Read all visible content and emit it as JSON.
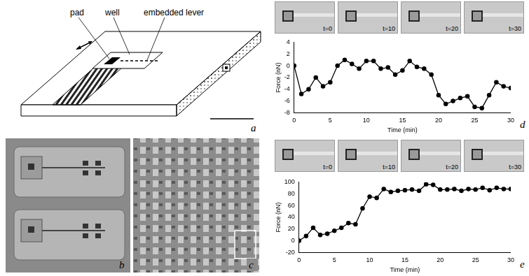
{
  "figure": {
    "diagram": {
      "panel": "a",
      "labels": [
        "pad",
        "well",
        "embedded lever"
      ]
    },
    "micrographs": [
      {
        "panel": "b"
      },
      {
        "panel": "c"
      }
    ],
    "frames": [
      {
        "panel": "d",
        "times": [
          "t=0",
          "t=10",
          "t=20",
          "t=30"
        ]
      },
      {
        "panel": "e",
        "times": [
          "t=0",
          "t=10",
          "t=20",
          "t=30"
        ]
      }
    ]
  },
  "chart_data": [
    {
      "type": "line",
      "panel": "d",
      "x_label": "Time (min)",
      "y_label": "Force (nN)",
      "x": [
        0,
        1,
        2,
        3,
        4,
        5,
        6,
        7,
        8,
        9,
        10,
        11,
        12,
        13,
        14,
        15,
        16,
        17,
        18,
        19,
        20,
        21,
        22,
        23,
        24,
        25,
        26,
        27,
        28,
        29,
        30
      ],
      "values": [
        0,
        -4.8,
        -4,
        -2,
        -3.5,
        -2.8,
        0,
        1,
        0.3,
        -0.5,
        0.8,
        0.8,
        -0.5,
        -0.3,
        -1.5,
        -0.8,
        0.8,
        -0.2,
        -0.5,
        -1.5,
        -5,
        -6.5,
        -6,
        -5.5,
        -5.2,
        -7,
        -7.2,
        -5,
        -2.8,
        -3.5,
        -3.8
      ],
      "color": "#000000",
      "marker": "circle",
      "line_style": "solid",
      "xlim": [
        0,
        30
      ],
      "xticks": [
        0,
        5,
        10,
        15,
        20,
        25,
        30
      ],
      "ylim": [
        -8,
        4
      ],
      "yticks": [
        -8,
        -6,
        -4,
        -2,
        0,
        2,
        4
      ],
      "grid": false
    },
    {
      "type": "line",
      "panel": "e",
      "x_label": "Time (min)",
      "y_label": "Force (nN)",
      "x": [
        0,
        1,
        2,
        3,
        4,
        5,
        6,
        7,
        8,
        9,
        10,
        11,
        12,
        13,
        14,
        15,
        16,
        17,
        18,
        19,
        20,
        21,
        22,
        23,
        24,
        25,
        26,
        27,
        28,
        29,
        30
      ],
      "values": [
        0,
        8,
        22,
        10,
        12,
        17,
        22,
        30,
        28,
        55,
        75,
        73,
        88,
        83,
        85,
        86,
        87,
        85,
        96,
        95,
        87,
        87,
        88,
        85,
        88,
        87,
        90,
        86,
        90,
        88,
        88
      ],
      "color": "#000000",
      "marker": "circle",
      "line_style": "solid",
      "xlim": [
        0,
        30
      ],
      "xticks": [
        0,
        5,
        10,
        15,
        20,
        25,
        30
      ],
      "ylim": [
        -20,
        100
      ],
      "yticks": [
        -20,
        0,
        20,
        40,
        60,
        80,
        100
      ],
      "grid": false
    }
  ]
}
